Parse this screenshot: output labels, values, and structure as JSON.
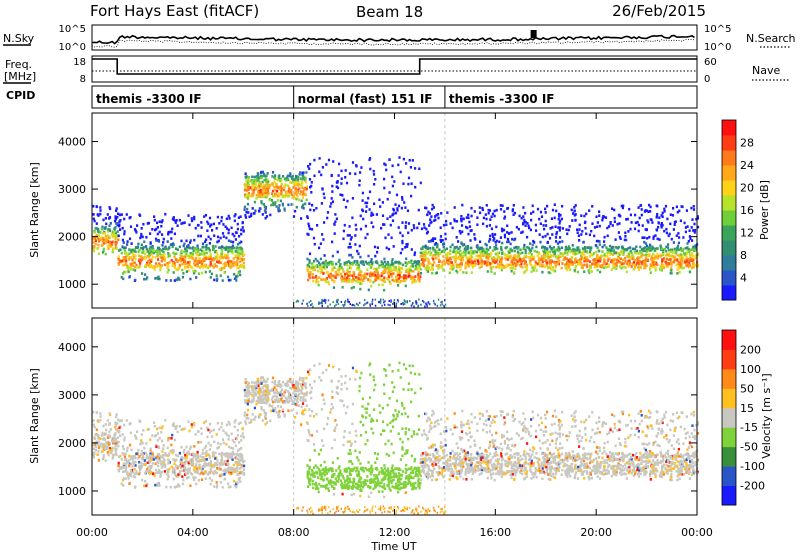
{
  "header": {
    "station": "Fort Hays East (fitACF)",
    "beam": "Beam 18",
    "date": "26/Feb/2015"
  },
  "top_panels": {
    "nsky_label": "N.Sky",
    "nsky_ticks": [
      "10^5",
      "10^0"
    ],
    "nsearch_label": "N.Search",
    "nsearch_ticks": [
      "10^5",
      "10^0"
    ],
    "freq_label_line1": "Freq.",
    "freq_label_line2": "[MHz]",
    "freq_ticks": [
      "18",
      "8"
    ],
    "nave_label": "Nave",
    "nave_ticks": [
      "60",
      "0"
    ],
    "cpid_label": "CPID",
    "cpid_segments": [
      {
        "label": "themis -3300 IF",
        "start_hour": 0,
        "end_hour": 8
      },
      {
        "label": "normal (fast) 151 IF",
        "start_hour": 8,
        "end_hour": 14
      },
      {
        "label": "themis -3300 IF",
        "start_hour": 14,
        "end_hour": 24
      }
    ]
  },
  "chart_data": [
    {
      "type": "heatmap",
      "name": "power",
      "ylabel": "Slant Range [km]",
      "y_ticks": [
        "1000",
        "2000",
        "3000",
        "4000"
      ],
      "ylim": [
        500,
        4600
      ],
      "xlim": [
        0,
        24
      ],
      "colorbar_label": "Power [dB]",
      "colorbar_ticks": [
        "4",
        "8",
        "12",
        "16",
        "20",
        "24",
        "28"
      ],
      "colorbar_colors": [
        "#1a1aff",
        "#2a55c8",
        "#2f7d9c",
        "#2f8f70",
        "#3aa55a",
        "#6fcf3a",
        "#b6e22a",
        "#ffd21a",
        "#ffa81a",
        "#ff7a1a",
        "#ff3c14",
        "#ff1010"
      ],
      "bands": [
        {
          "start": 0.0,
          "end": 1.0,
          "lower": 1650,
          "upper": 2700,
          "dense": 1900
        },
        {
          "start": 1.0,
          "end": 6.0,
          "lower": 1100,
          "upper": 2500,
          "dense": 1500
        },
        {
          "start": 6.0,
          "end": 8.5,
          "lower": 2400,
          "upper": 3400,
          "dense": 3000
        },
        {
          "start": 8.5,
          "end": 13.0,
          "lower": 900,
          "upper": 3700,
          "dense": 1200
        },
        {
          "start": 13.0,
          "end": 24.0,
          "lower": 1250,
          "upper": 2700,
          "dense": 1500
        }
      ]
    },
    {
      "type": "heatmap",
      "name": "velocity",
      "ylabel": "Slant Range [km]",
      "y_ticks": [
        "1000",
        "2000",
        "3000",
        "4000"
      ],
      "ylim": [
        500,
        4600
      ],
      "xlim": [
        0,
        24
      ],
      "xlabel": "Time UT",
      "x_ticks": [
        "00:00",
        "04:00",
        "08:00",
        "12:00",
        "16:00",
        "20:00",
        "00:00"
      ],
      "colorbar_label": "Velocity [m s⁻¹]",
      "colorbar_ticks": [
        "200",
        "100",
        "50",
        "15",
        "-15",
        "-50",
        "-100",
        "-200"
      ],
      "colorbar_colors": [
        "#1a1aff",
        "#2a55c8",
        "#3a8f3a",
        "#7fd23a",
        "#c8c8c0",
        "#ffc020",
        "#ff8a1a",
        "#ff3c14",
        "#ff1010"
      ]
    }
  ]
}
